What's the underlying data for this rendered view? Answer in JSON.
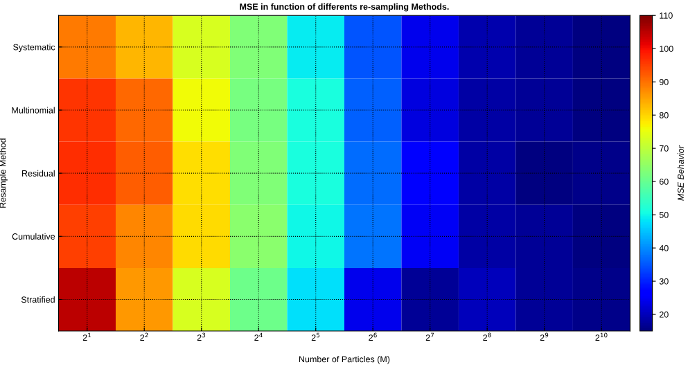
{
  "chart_data": {
    "type": "heatmap",
    "title": "MSE in function of differents re-sampling Methods.",
    "xlabel": "Number of Particles (M)",
    "ylabel": "Resample Method",
    "clabel": "MSE Behavior",
    "categories": [
      "2$^{1}$",
      "2$^{2}$",
      "2$^{3}$",
      "2$^{4}$",
      "2$^{5}$",
      "2$^{6}$",
      "2$^{7}$",
      "2$^{8}$",
      "2$^{9}$",
      "2$^{10}$"
    ],
    "y_categories": [
      "Systematic",
      "Multinomial",
      "Residual",
      "Cumulative",
      "Stratified"
    ],
    "cells": [
      [
        89,
        83,
        73,
        63,
        49,
        35,
        24,
        19,
        17,
        15
      ],
      [
        96,
        91,
        76,
        62,
        51,
        36,
        23,
        18,
        17,
        15
      ],
      [
        97,
        92,
        79,
        63,
        51,
        37,
        26,
        18,
        15,
        16
      ],
      [
        95,
        88,
        79.5,
        64,
        50,
        38,
        25,
        18,
        17,
        15
      ],
      [
        105,
        86,
        73,
        61,
        48,
        24,
        17,
        20,
        17,
        16
      ]
    ],
    "clim": [
      15,
      110
    ],
    "cticks": [
      20,
      30,
      40,
      50,
      60,
      70,
      80,
      90,
      100,
      110
    ],
    "grid": true
  }
}
